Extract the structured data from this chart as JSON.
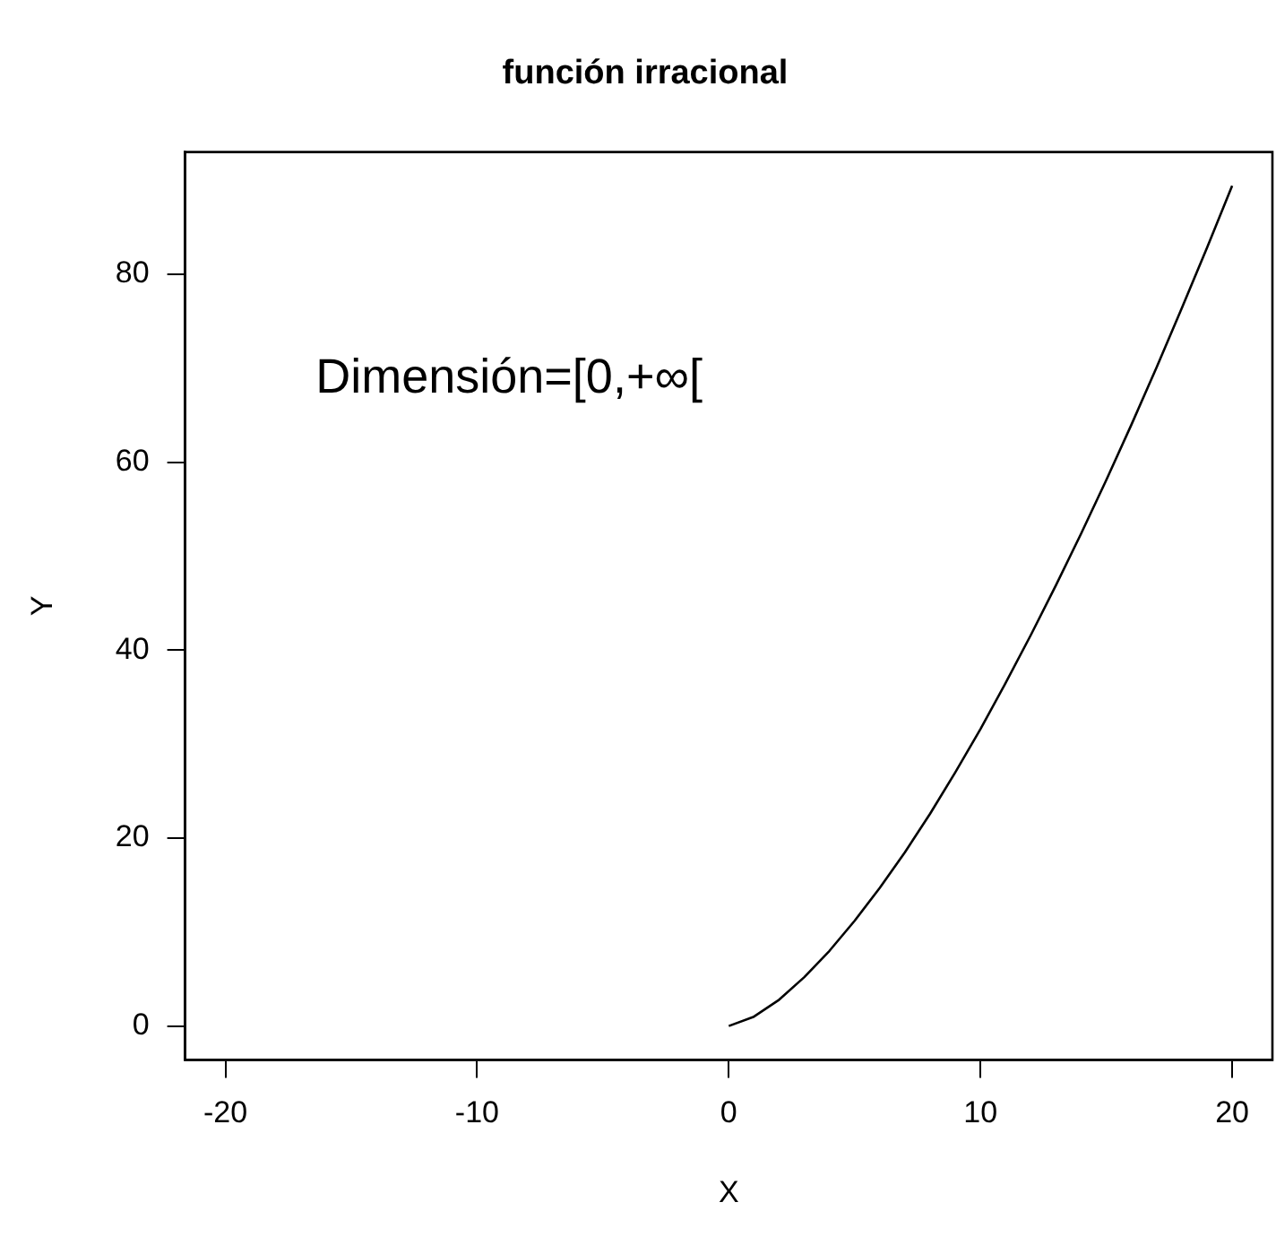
{
  "chart_data": {
    "type": "line",
    "title": "función irracional",
    "xlabel": "X",
    "ylabel": "Y",
    "annotations": [
      "Dimensión=[0,+∞["
    ],
    "x": [
      0,
      1,
      2,
      3,
      4,
      5,
      6,
      7,
      8,
      9,
      10,
      11,
      12,
      13,
      14,
      15,
      16,
      17,
      18,
      19,
      20
    ],
    "series": [
      {
        "color": "#000000",
        "values": [
          0,
          1,
          2.8,
          5.2,
          8,
          11.2,
          14.7,
          18.5,
          22.6,
          27,
          31.6,
          36.5,
          41.6,
          46.9,
          52.4,
          58.1,
          64,
          70.1,
          76.4,
          82.8,
          89.4
        ]
      }
    ],
    "xlim": [
      -21.6,
      21.6
    ],
    "xticks": [
      -20,
      -10,
      0,
      10,
      20
    ],
    "ylim": [
      -3.6,
      93
    ],
    "yticks": [
      0,
      20,
      40,
      60,
      80
    ],
    "grid": false,
    "legend": false,
    "marker": "none",
    "line_style": "solid"
  }
}
